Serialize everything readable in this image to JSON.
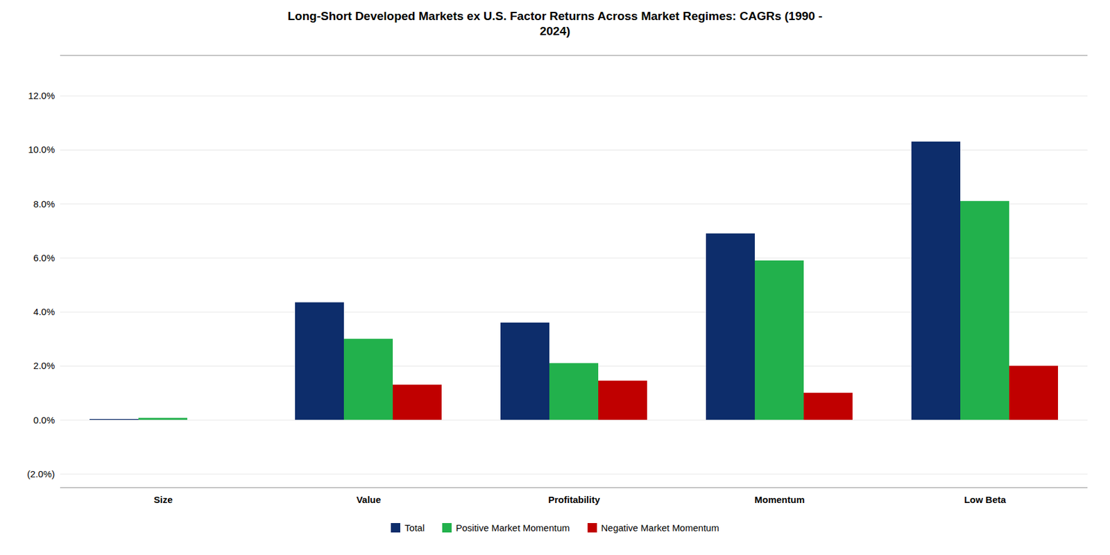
{
  "chart_data": {
    "type": "bar",
    "title": "Long-Short Developed Markets ex U.S. Factor Returns Across Market Regimes: CAGRs (1990 -\n2024)",
    "categories": [
      "Size",
      "Value",
      "Profitability",
      "Momentum",
      "Low Beta"
    ],
    "series": [
      {
        "name": "Total",
        "color": "#0d2d6b",
        "values": [
          0.0003,
          0.0435,
          0.036,
          0.069,
          0.103
        ]
      },
      {
        "name": "Positive Market Momentum",
        "color": "#22b14c",
        "values": [
          0.0007,
          0.03,
          0.021,
          0.059,
          0.081
        ]
      },
      {
        "name": "Negative Market Momentum",
        "color": "#c00000",
        "values": [
          0.0,
          0.013,
          0.0145,
          0.01,
          0.02
        ]
      }
    ],
    "ylim": [
      -0.025,
      0.135
    ],
    "yticks": [
      {
        "value": -0.02,
        "label": "(2.0%)"
      },
      {
        "value": 0.0,
        "label": "0.0%"
      },
      {
        "value": 0.02,
        "label": "2.0%"
      },
      {
        "value": 0.04,
        "label": "4.0%"
      },
      {
        "value": 0.06,
        "label": "6.0%"
      },
      {
        "value": 0.08,
        "label": "8.0%"
      },
      {
        "value": 0.1,
        "label": "10.0%"
      },
      {
        "value": 0.12,
        "label": "12.0%"
      }
    ],
    "grid": true,
    "legend": "bottom"
  }
}
